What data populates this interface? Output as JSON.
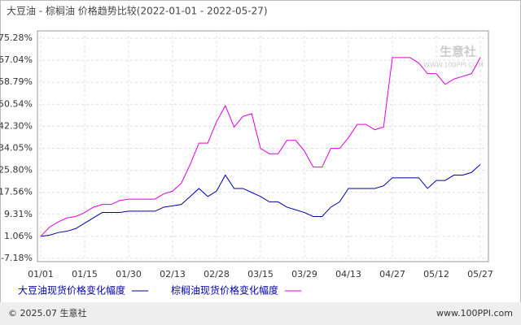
{
  "chart_data": {
    "type": "line",
    "title": "大豆油 - 棕榈油 价格趋势比较(2022-01-01 - 2022-05-27)",
    "categories": [
      "01/01",
      null,
      null,
      null,
      null,
      "01/15",
      null,
      null,
      null,
      null,
      "01/30",
      null,
      null,
      null,
      null,
      "02/13",
      null,
      null,
      null,
      null,
      "02/28",
      null,
      null,
      null,
      null,
      "03/15",
      null,
      null,
      null,
      null,
      "03/29",
      null,
      null,
      null,
      null,
      "04/13",
      null,
      null,
      null,
      null,
      "04/27",
      null,
      null,
      null,
      null,
      "05/12",
      null,
      null,
      null,
      null,
      "05/27"
    ],
    "series": [
      {
        "name": "大豆油现货价格变化幅度",
        "color": "#0000aa",
        "values": [
          1.06,
          1.5,
          2.5,
          3,
          4,
          6,
          8,
          10,
          10,
          10,
          10.5,
          10.5,
          10.5,
          10.5,
          12,
          12.5,
          13,
          16,
          19,
          16,
          18,
          24,
          19,
          19,
          17.5,
          16,
          14,
          14,
          12,
          11,
          10,
          8.5,
          8.5,
          12,
          14,
          19,
          19,
          19,
          19,
          20,
          23,
          23,
          23,
          23,
          19,
          22,
          22,
          24,
          24,
          25,
          28
        ]
      },
      {
        "name": "棕榈油现货价格变化幅度",
        "color": "#e000e0",
        "values": [
          1.06,
          4.5,
          6.5,
          8,
          8.5,
          10,
          12,
          13,
          13,
          14.5,
          15,
          15,
          15,
          15,
          17,
          18,
          21,
          28,
          36,
          36,
          44,
          50,
          42,
          46,
          47,
          34,
          32,
          32,
          37,
          37,
          33,
          27,
          27,
          34,
          34,
          38,
          43,
          43,
          41,
          42,
          68,
          68,
          68,
          66,
          62,
          62,
          58,
          60,
          61,
          62,
          68
        ]
      }
    ],
    "ylim": [
      -7.18,
      75.28
    ],
    "yticks": [
      {
        "value": -7.18,
        "label": "-7.18%"
      },
      {
        "value": 1.06,
        "label": "1.06%"
      },
      {
        "value": 9.31,
        "label": "9.31%"
      },
      {
        "value": 17.56,
        "label": "17.56%"
      },
      {
        "value": 25.8,
        "label": "25.80%"
      },
      {
        "value": 34.05,
        "label": "34.05%"
      },
      {
        "value": 42.3,
        "label": "42.30%"
      },
      {
        "value": 50.54,
        "label": "50.54%"
      },
      {
        "value": 58.79,
        "label": "58.79%"
      },
      {
        "value": 67.04,
        "label": "67.04%"
      },
      {
        "value": 75.28,
        "label": "75.28%"
      }
    ],
    "grid": true,
    "watermark": "生意社",
    "watermark_url": "WWW.100PPI.COM",
    "footer_left": "© 2025.07 生意社",
    "footer_right": "www.100PPI.com"
  }
}
